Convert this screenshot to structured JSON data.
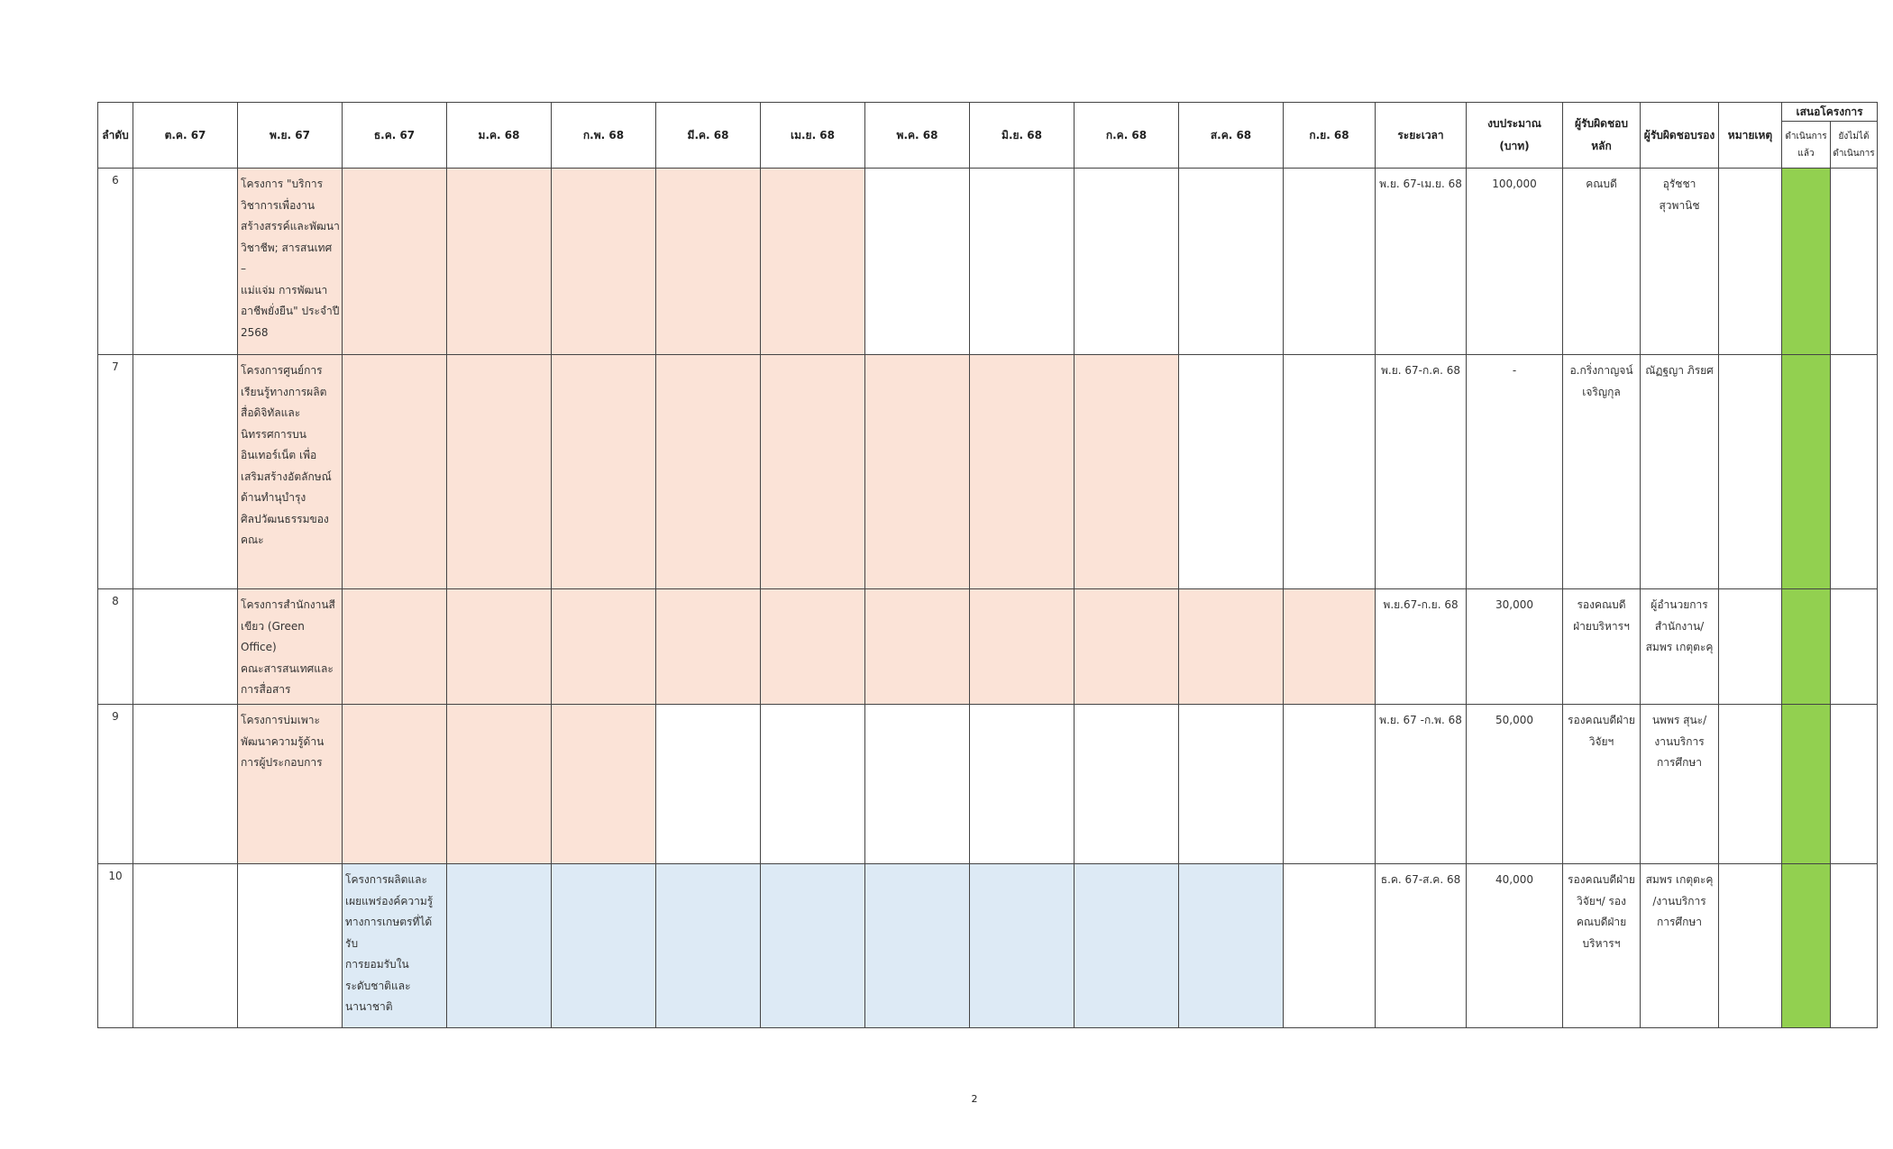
{
  "headers": {
    "index": "ลำดับ",
    "months": [
      "ต.ค. 67",
      "พ.ย. 67",
      "ธ.ค. 67",
      "ม.ค. 68",
      "ก.พ. 68",
      "มี.ค. 68",
      "เม.ย. 68",
      "พ.ค. 68",
      "มิ.ย. 68",
      "ก.ค. 68",
      "ส.ค. 68",
      "ก.ย. 68"
    ],
    "period": "ระยะเวลา",
    "budget_line1": "งบประมาณ",
    "budget_line2": "(บาท)",
    "owner_main_line1": "ผู้รับผิดชอบ",
    "owner_main_line2": "หลัก",
    "owner_secondary": "ผู้รับผิดชอบรอง",
    "remark": "หมายเหตุ",
    "proposal_group": "เสนอโครงการ",
    "done_line1": "ดำเนินการ",
    "done_line2": "แล้ว",
    "notdone_line1": "ยังไม่ได้",
    "notdone_line2": "ดำเนินการ"
  },
  "colors": {
    "shade_orange": "#fbe3d7",
    "shade_blue": "#ddeaf5",
    "done_green": "#92d050"
  },
  "rows": [
    {
      "index": "6",
      "name_lines": [
        "โครงการ \"บริการ",
        "วิชาการเพื่องาน",
        "สร้างสรรค์และพัฒนา",
        "วิชาชีพ; สารสนเทศ –",
        " แม่แจ่ม การพัฒนา",
        "อาชีพยั่งยืน\" ประจำปี",
        " 2568"
      ],
      "period": "พ.ย. 67-เม.ย. 68",
      "budget": "100,000",
      "owner_main_lines": [
        "คณบดี"
      ],
      "owner_secondary_lines": [
        "อุรัชชา",
        "สุวพานิช"
      ],
      "remark": "",
      "start_month": 1,
      "end_month": 6,
      "shade": "orange"
    },
    {
      "index": "7",
      "name_lines": [
        "โครงการศูนย์การ",
        "เรียนรู้ทางการผลิต",
        "สื่อดิจิทัลและ",
        "นิทรรศการบน",
        "อินเทอร์เน็ต  เพื่อ",
        "เสริมสร้างอัตลักษณ์",
        "ด้านทำนุบำรุง",
        "ศิลปวัฒนธรรมของ",
        "คณะ"
      ],
      "period": "พ.ย. 67-ก.ค. 68",
      "budget": "-",
      "owner_main_lines": [
        "อ.กริ่งกาญจน์",
        "เจริญกุล"
      ],
      "owner_secondary_lines": [
        "ณัฏฐญา ภิรยศ"
      ],
      "remark": "",
      "start_month": 1,
      "end_month": 9,
      "shade": "orange"
    },
    {
      "index": "8",
      "name_lines": [
        "โครงการสำนักงานสี",
        "เขียว (Green  Office)",
        "คณะสารสนเทศและ",
        "การสื่อสาร"
      ],
      "period": "พ.ย.67-ก.ย. 68",
      "budget": "30,000",
      "owner_main_lines": [
        "รองคณบดี",
        "ฝ่ายบริหารฯ"
      ],
      "owner_secondary_lines": [
        "ผู้อำนวยการ",
        "สำนักงาน/",
        "สมพร เกตุตะคุ"
      ],
      "remark": "",
      "start_month": 1,
      "end_month": 11,
      "shade": "orange"
    },
    {
      "index": "9",
      "name_lines": [
        "โครงการบ่มเพาะ",
        "พัฒนาความรู้ด้าน",
        "การผู้ประกอบการ"
      ],
      "period": "พ.ย. 67 -ก.พ. 68",
      "budget": "50,000",
      "owner_main_lines": [
        "รองคณบดีฝ่าย",
        "วิจัยฯ"
      ],
      "owner_secondary_lines": [
        "นพพร สุนะ/",
        "งานบริการ",
        "การศึกษา"
      ],
      "remark": "",
      "start_month": 1,
      "end_month": 4,
      "shade": "orange"
    },
    {
      "index": "10",
      "name_lines": [
        "โครงการผลิตและ",
        "เผยแพร่องค์ความรู้",
        "ทางการเกษตรที่ได้รับ",
        "การยอมรับใน",
        "ระดับชาติและ",
        "นานาชาติ"
      ],
      "period": "ธ.ค. 67-ส.ค. 68",
      "budget": "40,000",
      "owner_main_lines": [
        "รองคณบดีฝ่าย",
        "วิจัยฯ/ รอง",
        "คณบดีฝ่าย",
        "บริหารฯ"
      ],
      "owner_secondary_lines": [
        "สมพร เกตุตะคุ",
        "/งานบริการ",
        "การศึกษา"
      ],
      "remark": "",
      "start_month": 2,
      "end_month": 10,
      "shade": "blue"
    }
  ],
  "page_number": "2"
}
